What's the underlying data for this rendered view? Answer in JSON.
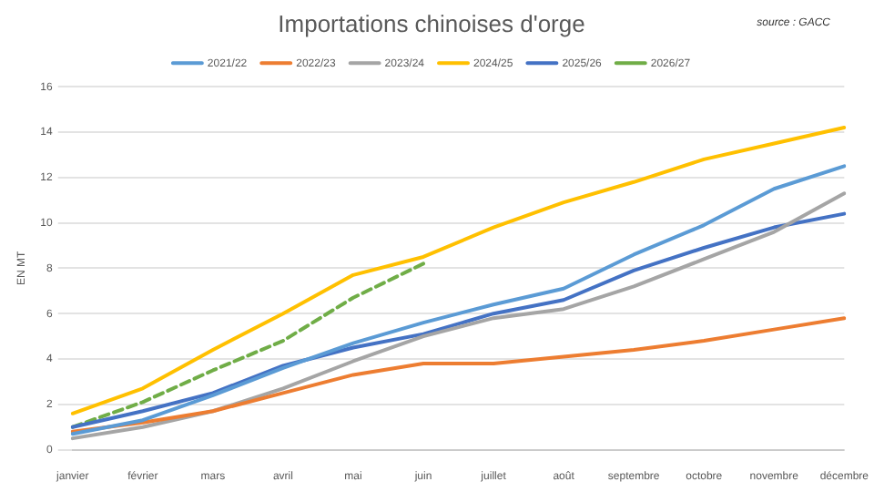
{
  "chart_data": {
    "type": "line",
    "title": "Importations chinoises d'orge",
    "ylabel": "EN MT",
    "annotations": [
      "source : GACC"
    ],
    "categories": [
      "janvier",
      "février",
      "mars",
      "avril",
      "mai",
      "juin",
      "juillet",
      "août",
      "septembre",
      "octobre",
      "novembre",
      "décembre"
    ],
    "ylim": [
      0,
      16
    ],
    "yticks": [
      0,
      2,
      4,
      6,
      8,
      10,
      12,
      14,
      16
    ],
    "grid": "y",
    "legend": "top",
    "marker": "none",
    "series": [
      {
        "name": "2021/22",
        "color": "#5b9bd5",
        "values": [
          0.7,
          1.3,
          2.4,
          3.6,
          4.7,
          5.6,
          6.4,
          7.1,
          8.6,
          9.9,
          11.5,
          12.5
        ]
      },
      {
        "name": "2022/23",
        "color": "#ed7d31",
        "values": [
          0.8,
          1.2,
          1.7,
          2.5,
          3.3,
          3.8,
          3.8,
          4.1,
          4.4,
          4.8,
          5.3,
          5.8
        ]
      },
      {
        "name": "2023/24",
        "color": "#a5a5a5",
        "values": [
          0.5,
          1.0,
          1.7,
          2.7,
          3.9,
          5.0,
          5.8,
          6.2,
          7.2,
          8.4,
          9.6,
          11.3
        ]
      },
      {
        "name": "2024/25",
        "color": "#ffc000",
        "values": [
          1.6,
          2.7,
          4.4,
          6.0,
          7.7,
          8.5,
          9.8,
          10.9,
          11.8,
          12.8,
          13.5,
          14.2
        ]
      },
      {
        "name": "2025/26",
        "color": "#4472c4",
        "values": [
          1.0,
          1.7,
          2.5,
          3.7,
          4.5,
          5.1,
          6.0,
          6.6,
          7.9,
          8.9,
          9.8,
          10.4
        ]
      },
      {
        "name": "2026/27",
        "color": "#70ad47",
        "line_style": "dashed",
        "values": [
          1.0,
          2.1,
          3.5,
          4.8,
          6.7,
          8.2,
          null,
          null,
          null,
          null,
          null,
          null
        ]
      }
    ]
  }
}
